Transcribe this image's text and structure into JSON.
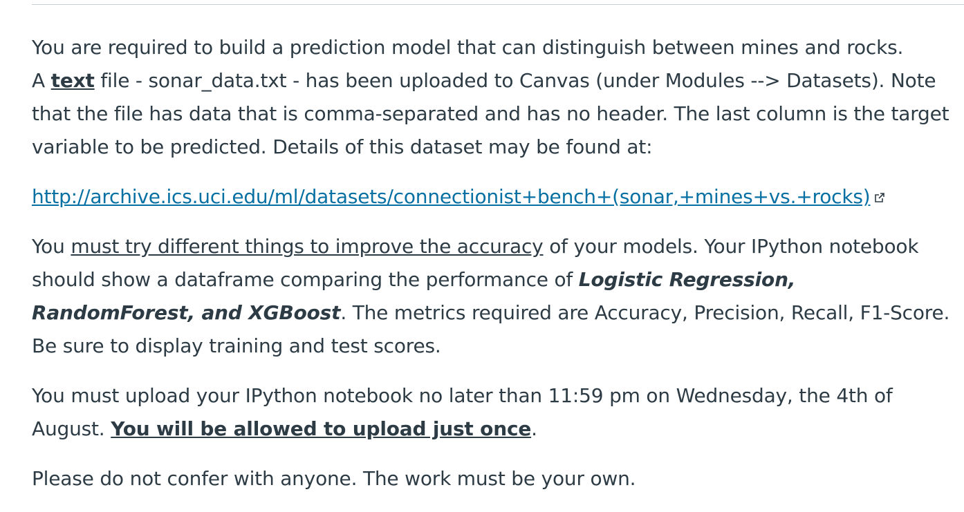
{
  "intro": {
    "line1": "You are required to build a prediction model that can distinguish between mines and rocks.",
    "before_text": "A ",
    "text_word": "text",
    "after_text": " file - sonar_data.txt - has been uploaded to Canvas (under Modules --> Datasets). Note that the file has data that is comma-separated and has no header. The last column is the target variable to be predicted. Details of this dataset may be found at:"
  },
  "link": {
    "url_text": "http://archive.ics.uci.edu/ml/datasets/connectionist+bench+(sonar,+mines+vs.+rocks)",
    "icon": "external-link-icon"
  },
  "models_paragraph": {
    "p1": "You ",
    "underlined": "must try different things to improve the accuracy",
    "p2": " of your models. Your IPython notebook should show a dataframe comparing the performance of ",
    "models": "Logistic Regression, RandomForest, and XGBoost",
    "p3": ". The metrics required are Accuracy, Precision, Recall, F1-Score. Be sure to display training and test scores."
  },
  "deadline_paragraph": {
    "p1": "You must upload your IPython notebook no later than 11:59 pm on Wednesday, the 4th of August. ",
    "emphasis": "You will be allowed to upload just once",
    "p2": "."
  },
  "closing": {
    "text": "Please do not confer with anyone. The work must be your own."
  },
  "colors": {
    "text": "#2d3b45",
    "link": "#0770a3",
    "rule": "#c7cdd1"
  }
}
